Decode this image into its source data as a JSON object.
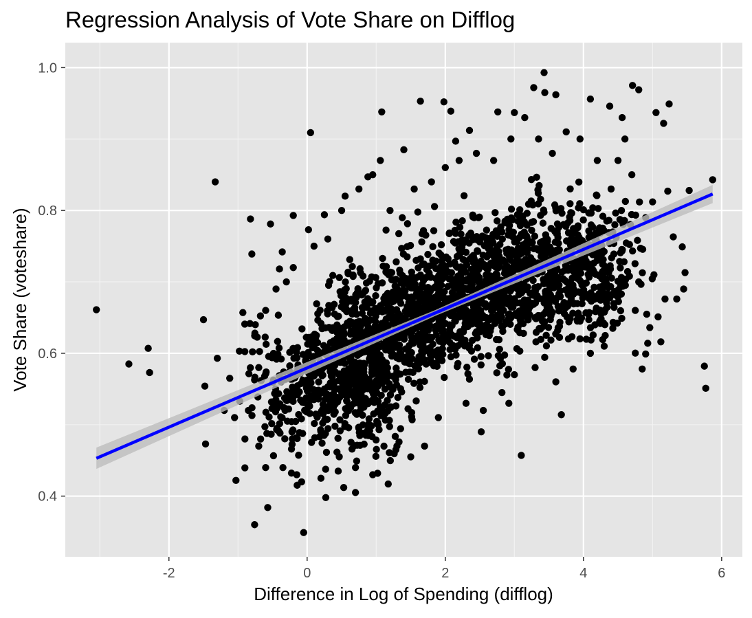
{
  "chart_data": {
    "type": "scatter",
    "title": "Regression Analysis of Vote Share on Difflog",
    "xlabel": "Difference in Log of Spending (difflog)",
    "ylabel": "Vote Share (voteshare)",
    "xlim": [
      -3.5,
      6.3
    ],
    "ylim": [
      0.315,
      1.035
    ],
    "x_ticks": [
      -2,
      0,
      2,
      4,
      6
    ],
    "x_tick_labels": [
      "-2",
      "0",
      "2",
      "4",
      "6"
    ],
    "y_ticks": [
      0.4,
      0.6,
      0.8,
      1.0
    ],
    "y_tick_labels": [
      "0.4",
      "0.6",
      "0.8",
      "1.0"
    ],
    "grid": true,
    "background": "#e5e5e5",
    "point_color": "#000000",
    "fit_line": {
      "x": [
        -3.05,
        5.87
      ],
      "y": [
        0.453,
        0.823
      ],
      "color": "#0000ff",
      "ci_band": true,
      "ci_color": "#bdbdbd"
    },
    "points": [
      {
        "x": -3.05,
        "y": 0.661
      },
      {
        "x": -2.58,
        "y": 0.585
      },
      {
        "x": -2.3,
        "y": 0.607
      },
      {
        "x": -2.28,
        "y": 0.573
      },
      {
        "x": -1.5,
        "y": 0.647
      },
      {
        "x": -1.48,
        "y": 0.554
      },
      {
        "x": -1.47,
        "y": 0.473
      },
      {
        "x": -1.33,
        "y": 0.84
      },
      {
        "x": -1.3,
        "y": 0.593
      },
      {
        "x": -1.2,
        "y": 0.52
      },
      {
        "x": -1.12,
        "y": 0.565
      },
      {
        "x": -1.05,
        "y": 0.51
      },
      {
        "x": -1.03,
        "y": 0.422
      },
      {
        "x": -0.98,
        "y": 0.603
      },
      {
        "x": -0.93,
        "y": 0.657
      },
      {
        "x": -0.82,
        "y": 0.788
      },
      {
        "x": -0.8,
        "y": 0.739
      },
      {
        "x": -0.76,
        "y": 0.36
      },
      {
        "x": -0.57,
        "y": 0.384
      },
      {
        "x": -0.53,
        "y": 0.781
      },
      {
        "x": -0.4,
        "y": 0.718
      },
      {
        "x": -0.36,
        "y": 0.742
      },
      {
        "x": -0.2,
        "y": 0.793
      },
      {
        "x": -0.08,
        "y": 0.42
      },
      {
        "x": 0.02,
        "y": 0.773
      },
      {
        "x": 0.05,
        "y": 0.909
      },
      {
        "x": -0.05,
        "y": 0.349
      },
      {
        "x": 0.27,
        "y": 0.398
      },
      {
        "x": 0.25,
        "y": 0.794
      },
      {
        "x": 0.5,
        "y": 0.8
      },
      {
        "x": 0.53,
        "y": 0.412
      },
      {
        "x": 0.7,
        "y": 0.405
      },
      {
        "x": 0.88,
        "y": 0.847
      },
      {
        "x": 1.06,
        "y": 0.87
      },
      {
        "x": 1.08,
        "y": 0.938
      },
      {
        "x": 1.02,
        "y": 0.432
      },
      {
        "x": 1.4,
        "y": 0.885
      },
      {
        "x": 1.52,
        "y": 0.507
      },
      {
        "x": 1.64,
        "y": 0.953
      },
      {
        "x": 1.98,
        "y": 0.952
      },
      {
        "x": 2.08,
        "y": 0.939
      },
      {
        "x": 2.15,
        "y": 0.897
      },
      {
        "x": 2.35,
        "y": 0.912
      },
      {
        "x": 2.52,
        "y": 0.49
      },
      {
        "x": 2.76,
        "y": 0.938
      },
      {
        "x": 2.92,
        "y": 0.53
      },
      {
        "x": 3.0,
        "y": 0.937
      },
      {
        "x": 3.1,
        "y": 0.457
      },
      {
        "x": 3.28,
        "y": 0.972
      },
      {
        "x": 3.43,
        "y": 0.993
      },
      {
        "x": 3.44,
        "y": 0.965
      },
      {
        "x": 3.6,
        "y": 0.962
      },
      {
        "x": 3.68,
        "y": 0.514
      },
      {
        "x": 4.1,
        "y": 0.956
      },
      {
        "x": 4.38,
        "y": 0.946
      },
      {
        "x": 4.56,
        "y": 0.93
      },
      {
        "x": 4.71,
        "y": 0.975
      },
      {
        "x": 4.8,
        "y": 0.969
      },
      {
        "x": 4.85,
        "y": 0.578
      },
      {
        "x": 4.9,
        "y": 0.599
      },
      {
        "x": 4.93,
        "y": 0.614
      },
      {
        "x": 5.05,
        "y": 0.937
      },
      {
        "x": 5.16,
        "y": 0.922
      },
      {
        "x": 5.24,
        "y": 0.949
      },
      {
        "x": 5.12,
        "y": 0.616
      },
      {
        "x": 5.22,
        "y": 0.827
      },
      {
        "x": 5.45,
        "y": 0.69
      },
      {
        "x": 5.47,
        "y": 0.713
      },
      {
        "x": 5.43,
        "y": 0.749
      },
      {
        "x": 5.53,
        "y": 0.828
      },
      {
        "x": 5.75,
        "y": 0.582
      },
      {
        "x": 5.77,
        "y": 0.551
      },
      {
        "x": 5.87,
        "y": 0.843
      },
      {
        "x": 5.3,
        "y": 0.763
      },
      {
        "x": 5.0,
        "y": 0.812
      },
      {
        "x": 5.18,
        "y": 0.676
      },
      {
        "x": 5.35,
        "y": 0.676
      },
      {
        "x": 4.96,
        "y": 0.636
      },
      {
        "x": 5.08,
        "y": 0.651
      },
      {
        "x": 4.6,
        "y": 0.9
      },
      {
        "x": 4.5,
        "y": 0.87
      },
      {
        "x": 4.7,
        "y": 0.85
      },
      {
        "x": 4.9,
        "y": 0.79
      },
      {
        "x": 5.02,
        "y": 0.71
      },
      {
        "x": 4.75,
        "y": 0.66
      },
      {
        "x": 4.8,
        "y": 0.7
      },
      {
        "x": 4.3,
        "y": 0.61
      },
      {
        "x": 4.1,
        "y": 0.6
      },
      {
        "x": 3.85,
        "y": 0.578
      },
      {
        "x": 3.6,
        "y": 0.56
      },
      {
        "x": 3.3,
        "y": 0.58
      },
      {
        "x": 3.0,
        "y": 0.57
      },
      {
        "x": 2.82,
        "y": 0.545
      },
      {
        "x": 2.55,
        "y": 0.52
      },
      {
        "x": 2.3,
        "y": 0.53
      },
      {
        "x": 1.9,
        "y": 0.51
      },
      {
        "x": 1.7,
        "y": 0.47
      },
      {
        "x": 1.5,
        "y": 0.455
      },
      {
        "x": 1.3,
        "y": 0.47
      },
      {
        "x": 0.95,
        "y": 0.43
      },
      {
        "x": 0.7,
        "y": 0.44
      },
      {
        "x": 0.45,
        "y": 0.435
      },
      {
        "x": 0.2,
        "y": 0.425
      },
      {
        "x": -0.15,
        "y": 0.43
      },
      {
        "x": -0.35,
        "y": 0.44
      },
      {
        "x": -0.6,
        "y": 0.44
      },
      {
        "x": -0.7,
        "y": 0.47
      },
      {
        "x": -0.9,
        "y": 0.48
      },
      {
        "x": -0.85,
        "y": 0.52
      },
      {
        "x": -0.7,
        "y": 0.58
      },
      {
        "x": -0.75,
        "y": 0.64
      },
      {
        "x": -0.6,
        "y": 0.66
      },
      {
        "x": -0.45,
        "y": 0.69
      },
      {
        "x": -0.3,
        "y": 0.7
      },
      {
        "x": -0.2,
        "y": 0.72
      },
      {
        "x": 0.1,
        "y": 0.75
      },
      {
        "x": 0.3,
        "y": 0.76
      },
      {
        "x": 0.55,
        "y": 0.82
      },
      {
        "x": 0.75,
        "y": 0.83
      },
      {
        "x": 0.95,
        "y": 0.85
      },
      {
        "x": 1.2,
        "y": 0.8
      },
      {
        "x": 1.55,
        "y": 0.83
      },
      {
        "x": 1.8,
        "y": 0.84
      },
      {
        "x": 2.0,
        "y": 0.86
      },
      {
        "x": 2.2,
        "y": 0.87
      },
      {
        "x": 2.45,
        "y": 0.88
      },
      {
        "x": 2.7,
        "y": 0.87
      },
      {
        "x": 2.95,
        "y": 0.9
      },
      {
        "x": 3.15,
        "y": 0.93
      },
      {
        "x": 3.35,
        "y": 0.9
      },
      {
        "x": 3.55,
        "y": 0.88
      },
      {
        "x": 3.75,
        "y": 0.91
      },
      {
        "x": 3.95,
        "y": 0.9
      },
      {
        "x": 4.2,
        "y": 0.87
      },
      {
        "x": 4.4,
        "y": 0.83
      },
      {
        "x": 4.55,
        "y": 0.8
      }
    ],
    "cloud": [
      {
        "cx": 0.7,
        "cy": 0.585,
        "sx": 0.45,
        "sy": 0.075,
        "n": 600
      },
      {
        "cx": 1.6,
        "cy": 0.65,
        "sx": 0.55,
        "sy": 0.065,
        "n": 500
      },
      {
        "cx": 2.6,
        "cy": 0.69,
        "sx": 0.55,
        "sy": 0.065,
        "n": 450
      },
      {
        "cx": 3.4,
        "cy": 0.72,
        "sx": 0.55,
        "sy": 0.065,
        "n": 420
      },
      {
        "cx": 4.2,
        "cy": 0.72,
        "sx": 0.45,
        "sy": 0.07,
        "n": 260
      },
      {
        "cx": 0.0,
        "cy": 0.55,
        "sx": 0.35,
        "sy": 0.07,
        "n": 160
      },
      {
        "cx": -0.5,
        "cy": 0.55,
        "sx": 0.3,
        "sy": 0.07,
        "n": 60
      }
    ]
  }
}
